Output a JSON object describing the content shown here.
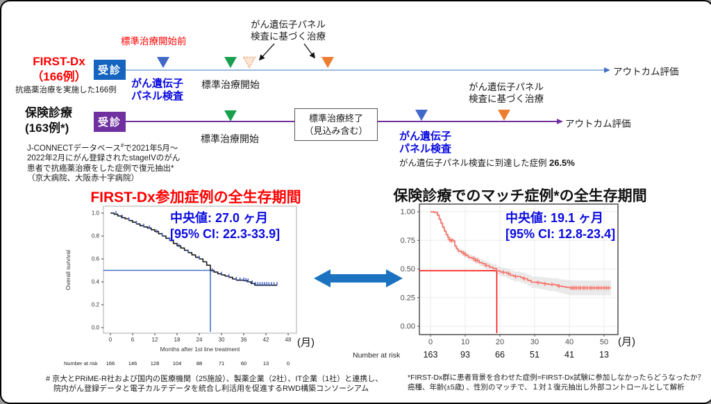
{
  "colors": {
    "accent_red": "#FF0000",
    "text_blue": "#0a0ae0",
    "triangle_blue": "#4169C8",
    "triangle_green": "#18A04E",
    "triangle_orange": "#ED7D31",
    "triangle_pale_fill": "#FBE5D6",
    "triangle_pale_border": "#F0A878",
    "visit_blue": "#1565C0",
    "purple": "#7030A0",
    "timeline1_line": "#9DBBE0",
    "timeline1_arrow": "#4472C4",
    "big_arrow_blue": "#1A72C0",
    "km_left_curve": "#151515",
    "km_left_censor": "#3B5BC4",
    "km_left_ref": "#4472C4",
    "km_right_curve": "#F8766D",
    "km_right_ref": "#FF1010",
    "ci_gray": "#D9D9D9"
  },
  "timeline": {
    "arm1": {
      "name_line1": "FIRST-Dx",
      "name_line2": "（166例）",
      "subtitle": "抗癌薬治療を実施した166例",
      "visit_label": "受診",
      "pre_soc_label": "標準治療開始前",
      "panel_test_line1": "がん遺伝子",
      "panel_test_line2": "パネル検査",
      "soc_start_label": "標準治療開始",
      "panel_treat_line1": "がん遺伝子パネル",
      "panel_treat_line2": "検査に基づく治療",
      "outcome_label": "アウトカム評価"
    },
    "arm2": {
      "name_line1": "保険診療",
      "name_line2": "(163例*)",
      "visit_label": "受診",
      "soc_start_label": "標準治療開始",
      "soc_end_line1": "標準治療終了",
      "soc_end_line2": "（見込み含む）",
      "panel_test_line1": "がん遺伝子",
      "panel_test_line2": "パネル検査",
      "panel_treat_line1": "がん遺伝子パネル",
      "panel_treat_line2": "検査に基づく治療",
      "reach_note_text": "がん遺伝子パネル検査に到達した症例 ",
      "reach_note_value": "26.5%",
      "outcome_label": "アウトカム評価"
    },
    "source_note": {
      "line1_a": "J-CONNECTデータベース",
      "line1_sup": "#",
      "line1_b": "で2021年5月～",
      "lines_rest": [
        "2022年2月にがん登録されたstageIVのがん",
        "患者で抗癌薬治療をした症例で復元抽出*",
        "（京大病院、大阪赤十字病院）"
      ]
    }
  },
  "chart_data": [
    {
      "type": "line",
      "subtype": "kaplan-meier",
      "title": "FIRST-Dx参加症例の全生存期間",
      "annotation_line1": "中央値: 27.0 ヶ月",
      "annotation_line2": "[95% CI: 22.3-33.9]",
      "xlabel": "Months after 1st line treatment",
      "x_unit_label": "(月)",
      "ylabel": "Overall survival",
      "xlim": [
        0,
        48
      ],
      "ylim": [
        0,
        1
      ],
      "xticks": [
        0,
        6,
        12,
        18,
        24,
        30,
        36,
        42,
        48
      ],
      "yticks": [
        "0.0",
        "0.2",
        "0.4",
        "0.6",
        "0.8",
        "1.0"
      ],
      "ytick_values": [
        0,
        0.2,
        0.4,
        0.6,
        0.8,
        1.0
      ],
      "median_month": 27.0,
      "median_survival": 0.5,
      "steps": [
        [
          0,
          1.0
        ],
        [
          1,
          0.99
        ],
        [
          2,
          0.975
        ],
        [
          3,
          0.96
        ],
        [
          4,
          0.95
        ],
        [
          5,
          0.935
        ],
        [
          6,
          0.92
        ],
        [
          7,
          0.905
        ],
        [
          8,
          0.89
        ],
        [
          9,
          0.88
        ],
        [
          10,
          0.87
        ],
        [
          11,
          0.855
        ],
        [
          12,
          0.84
        ],
        [
          13,
          0.82
        ],
        [
          14,
          0.8
        ],
        [
          15,
          0.78
        ],
        [
          16,
          0.76
        ],
        [
          17,
          0.735
        ],
        [
          18,
          0.715
        ],
        [
          19,
          0.695
        ],
        [
          20,
          0.675
        ],
        [
          21,
          0.655
        ],
        [
          22,
          0.635
        ],
        [
          23,
          0.615
        ],
        [
          24,
          0.6
        ],
        [
          25,
          0.575
        ],
        [
          26,
          0.545
        ],
        [
          27,
          0.5
        ],
        [
          28,
          0.485
        ],
        [
          29,
          0.47
        ],
        [
          30,
          0.46
        ],
        [
          31,
          0.45
        ],
        [
          32,
          0.44
        ],
        [
          33,
          0.425
        ],
        [
          34,
          0.415
        ],
        [
          36,
          0.41
        ],
        [
          37,
          0.4
        ],
        [
          38,
          0.385
        ],
        [
          39,
          0.37
        ],
        [
          45,
          0.37
        ]
      ],
      "censor_marks": [
        [
          1.5,
          0.99
        ],
        [
          3.2,
          0.96
        ],
        [
          5,
          0.935
        ],
        [
          7,
          0.905
        ],
        [
          9,
          0.88
        ],
        [
          10.5,
          0.865
        ],
        [
          12.5,
          0.83
        ],
        [
          14,
          0.8
        ],
        [
          16,
          0.76
        ],
        [
          18.5,
          0.705
        ],
        [
          21,
          0.655
        ],
        [
          24,
          0.6
        ],
        [
          27.5,
          0.49
        ],
        [
          30,
          0.46
        ],
        [
          32,
          0.44
        ],
        [
          34,
          0.415
        ],
        [
          35,
          0.41
        ],
        [
          36,
          0.41
        ],
        [
          36.6,
          0.405
        ],
        [
          37.2,
          0.4
        ],
        [
          38.3,
          0.385
        ],
        [
          39.2,
          0.37
        ],
        [
          39.8,
          0.37
        ],
        [
          40.4,
          0.37
        ],
        [
          41,
          0.37
        ],
        [
          41.6,
          0.37
        ],
        [
          42.2,
          0.37
        ],
        [
          42.8,
          0.37
        ],
        [
          43.5,
          0.37
        ],
        [
          44.2,
          0.37
        ],
        [
          45,
          0.37
        ]
      ],
      "number_at_risk_label": "Number at risk",
      "number_at_risk": [
        166,
        146,
        128,
        104,
        88,
        71,
        60,
        13,
        0
      ]
    },
    {
      "type": "line",
      "subtype": "kaplan-meier",
      "title": "保険診療でのマッチ症例*の全生存期間",
      "annotation_line1": "中央値: 19.1 ヶ月",
      "annotation_line2": "[95% CI: 12.8-23.4]",
      "xlabel": "",
      "x_unit_label": "(月)",
      "ylabel": "",
      "xlim": [
        0,
        52
      ],
      "ylim": [
        0,
        1
      ],
      "xticks": [
        0,
        10,
        20,
        30,
        40,
        50
      ],
      "yticks": [
        "0.00",
        "0.25",
        "0.50",
        "0.75",
        "1.00"
      ],
      "ytick_values": [
        0,
        0.25,
        0.5,
        0.75,
        1.0
      ],
      "median_month": 19.1,
      "median_survival": 0.485,
      "ci_halfwidth": {
        "start": 0.012,
        "end": 0.08
      },
      "steps": [
        [
          0,
          1.0
        ],
        [
          1,
          0.995
        ],
        [
          2,
          0.97
        ],
        [
          2.5,
          0.935
        ],
        [
          3,
          0.9
        ],
        [
          3.5,
          0.865
        ],
        [
          4,
          0.83
        ],
        [
          4.5,
          0.8
        ],
        [
          5,
          0.775
        ],
        [
          5.5,
          0.755
        ],
        [
          6.5,
          0.745
        ],
        [
          7,
          0.7
        ],
        [
          7.5,
          0.675
        ],
        [
          8,
          0.655
        ],
        [
          9,
          0.64
        ],
        [
          10,
          0.625
        ],
        [
          10.5,
          0.615
        ],
        [
          11,
          0.6
        ],
        [
          12,
          0.59
        ],
        [
          13,
          0.575
        ],
        [
          14,
          0.555
        ],
        [
          15,
          0.545
        ],
        [
          16,
          0.53
        ],
        [
          17,
          0.515
        ],
        [
          18,
          0.505
        ],
        [
          19,
          0.485
        ],
        [
          20,
          0.475
        ],
        [
          21,
          0.47
        ],
        [
          22,
          0.46
        ],
        [
          23,
          0.445
        ],
        [
          24,
          0.435
        ],
        [
          26,
          0.425
        ],
        [
          27,
          0.415
        ],
        [
          28,
          0.4
        ],
        [
          29,
          0.385
        ],
        [
          31,
          0.38
        ],
        [
          32,
          0.375
        ],
        [
          33,
          0.37
        ],
        [
          34,
          0.365
        ],
        [
          36,
          0.36
        ],
        [
          37,
          0.35
        ],
        [
          38,
          0.345
        ],
        [
          39,
          0.34
        ],
        [
          40,
          0.335
        ],
        [
          52,
          0.335
        ]
      ],
      "censor_marks": [
        [
          5.5,
          0.755
        ],
        [
          6,
          0.745
        ],
        [
          9.5,
          0.64
        ],
        [
          10,
          0.625
        ],
        [
          12.5,
          0.59
        ],
        [
          13,
          0.575
        ],
        [
          13.5,
          0.575
        ],
        [
          16,
          0.53
        ],
        [
          21,
          0.47
        ],
        [
          22.5,
          0.46
        ],
        [
          24.5,
          0.435
        ],
        [
          27,
          0.415
        ],
        [
          31,
          0.38
        ],
        [
          33,
          0.37
        ],
        [
          35,
          0.365
        ],
        [
          37,
          0.35
        ],
        [
          40.5,
          0.335
        ],
        [
          41,
          0.335
        ],
        [
          41.5,
          0.335
        ],
        [
          42,
          0.335
        ],
        [
          42.7,
          0.335
        ],
        [
          43.2,
          0.335
        ],
        [
          44,
          0.335
        ],
        [
          44.5,
          0.335
        ],
        [
          45.2,
          0.335
        ],
        [
          46,
          0.335
        ],
        [
          46.5,
          0.335
        ],
        [
          47.2,
          0.335
        ],
        [
          48,
          0.335
        ],
        [
          48.5,
          0.335
        ],
        [
          49.2,
          0.335
        ],
        [
          50,
          0.335
        ],
        [
          50.6,
          0.335
        ],
        [
          51.2,
          0.335
        ]
      ],
      "number_at_risk_label": "Number at risk",
      "number_at_risk": [
        163,
        93,
        66,
        51,
        41,
        13
      ]
    }
  ],
  "footnotes": {
    "left_lines": [
      "# 京大とPRiME-R社および国内の医療機関（25施設）、製薬企業（2社）、IT企業（1社）と連携し、",
      "　院内がん登録データと電子カルテデータを統合し利活用を促進するRWD構築コンソーシアム"
    ],
    "right_lines": [
      "*FIRST-Dx群に患者背景を合わせた症例=FIRST-Dx試験に参加しなかったらどうなったか？",
      "癌種、年齢(±5歳) 、性別のマッチで、１対１復元抽出し外部コントロールとして解析"
    ]
  }
}
